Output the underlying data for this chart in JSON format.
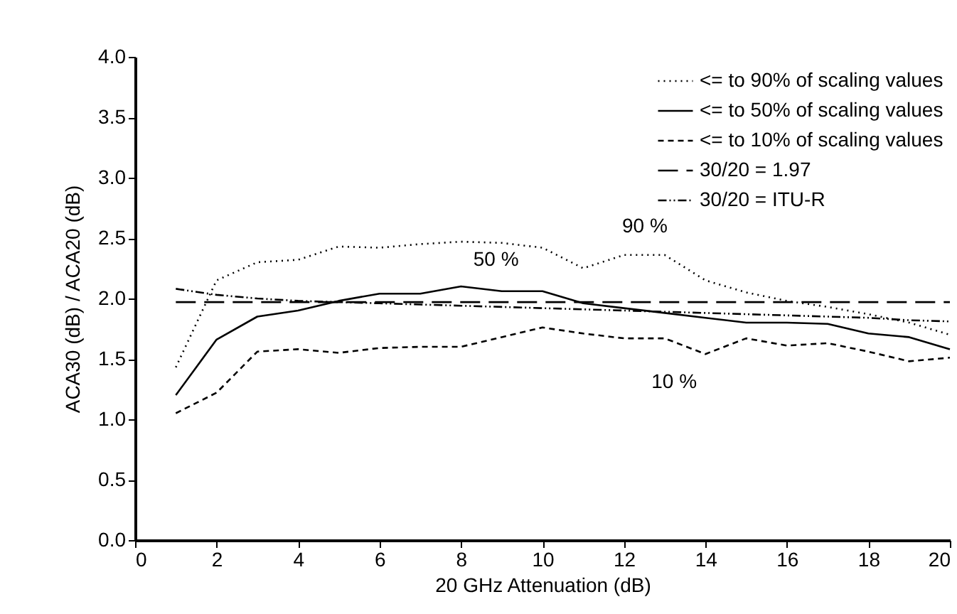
{
  "chart_data": {
    "type": "line",
    "xlabel": "20 GHz Attenuation (dB)",
    "ylabel": "ACA30 (dB) / ACA20 (dB)",
    "x": [
      1,
      2,
      3,
      4,
      5,
      6,
      7,
      8,
      9,
      10,
      11,
      12,
      13,
      14,
      15,
      16,
      17,
      18,
      19,
      20
    ],
    "series": [
      {
        "name": "<= to 90% of scaling values",
        "color": "#000000",
        "line_style": "dotted",
        "values": [
          1.43,
          2.15,
          2.3,
          2.32,
          2.43,
          2.42,
          2.45,
          2.47,
          2.46,
          2.42,
          2.25,
          2.36,
          2.36,
          2.15,
          2.05,
          1.98,
          1.93,
          1.87,
          1.8,
          1.7
        ]
      },
      {
        "name": "<= to 50% of scaling values",
        "color": "#000000",
        "line_style": "solid",
        "values": [
          1.2,
          1.66,
          1.85,
          1.9,
          1.98,
          2.04,
          2.04,
          2.1,
          2.06,
          2.06,
          1.96,
          1.92,
          1.88,
          1.84,
          1.8,
          1.8,
          1.79,
          1.71,
          1.68,
          1.58
        ]
      },
      {
        "name": "<= to 10% of scaling values",
        "color": "#000000",
        "line_style": "dashed",
        "values": [
          1.05,
          1.22,
          1.56,
          1.58,
          1.55,
          1.59,
          1.6,
          1.6,
          1.68,
          1.76,
          1.71,
          1.67,
          1.67,
          1.54,
          1.67,
          1.61,
          1.63,
          1.56,
          1.48,
          1.51
        ]
      },
      {
        "name": "30/20 = 1.97",
        "color": "#000000",
        "line_style": "dashed",
        "values": [
          1.97,
          1.97,
          1.97,
          1.97,
          1.97,
          1.97,
          1.97,
          1.97,
          1.97,
          1.97,
          1.97,
          1.97,
          1.97,
          1.97,
          1.97,
          1.97,
          1.97,
          1.97,
          1.97,
          1.97
        ]
      },
      {
        "name": "30/20 = ITU-R",
        "color": "#000000",
        "line_style": "dotted",
        "values": [
          2.08,
          2.03,
          2.0,
          1.98,
          1.97,
          1.96,
          1.95,
          1.94,
          1.93,
          1.92,
          1.91,
          1.9,
          1.89,
          1.88,
          1.87,
          1.86,
          1.85,
          1.84,
          1.82,
          1.81
        ]
      }
    ],
    "annotations": [
      {
        "text": "90 %",
        "x": 13,
        "y": 2.36
      },
      {
        "text": "50 %",
        "x": 9,
        "y": 2.06
      },
      {
        "text": "10 %",
        "x": 14,
        "y": 1.54
      }
    ],
    "xlim": [
      0,
      20
    ],
    "xticks": [
      0,
      2,
      4,
      6,
      8,
      10,
      12,
      14,
      16,
      18,
      20
    ],
    "ylim": [
      0,
      4
    ],
    "yticks": [
      {
        "value": 0,
        "label": "0.0"
      },
      {
        "value": 0.5,
        "label": "0.5"
      },
      {
        "value": 1,
        "label": "1.0"
      },
      {
        "value": 1.5,
        "label": "1.5"
      },
      {
        "value": 2,
        "label": "2.0"
      },
      {
        "value": 2.5,
        "label": "2.5"
      },
      {
        "value": 3,
        "label": "3.0"
      },
      {
        "value": 3.5,
        "label": "3.5"
      },
      {
        "value": 4,
        "label": "4.0"
      }
    ],
    "grid": false,
    "legend": "top right"
  }
}
